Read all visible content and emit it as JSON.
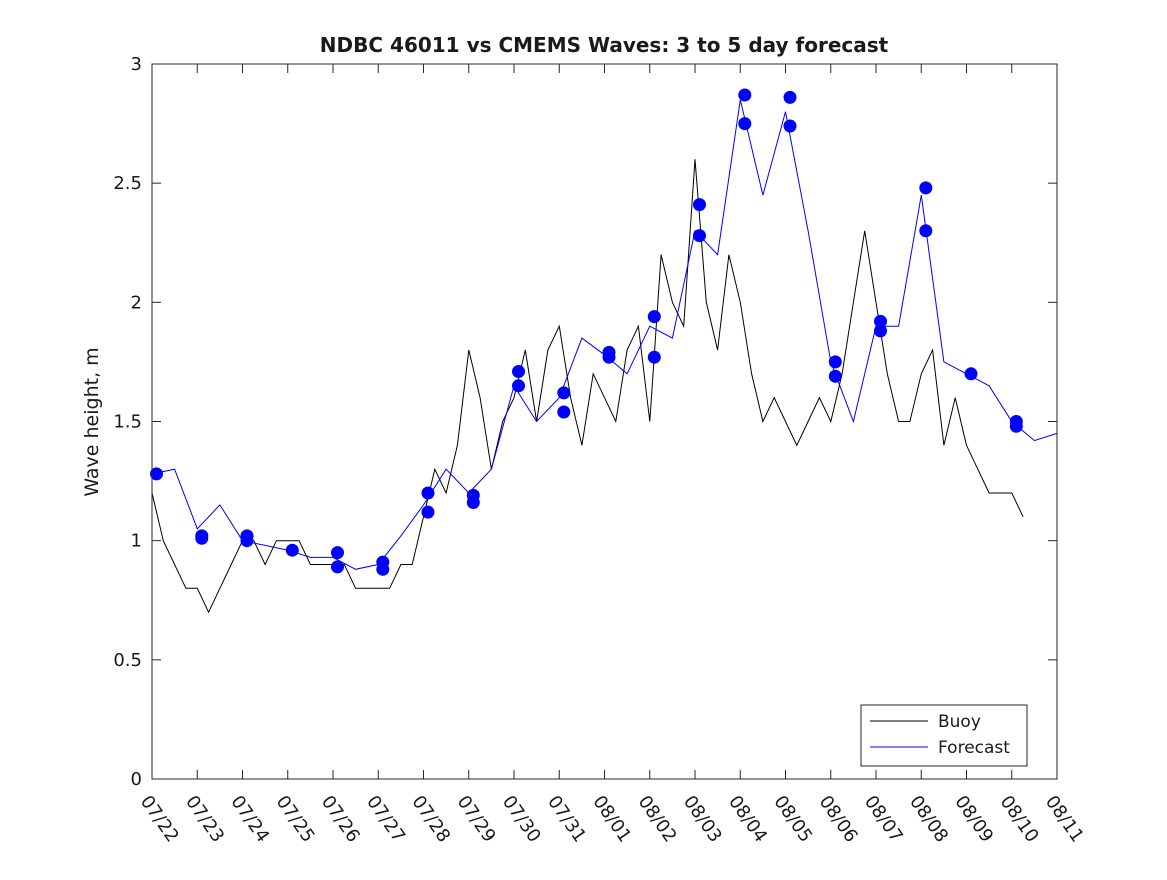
{
  "chart_data": {
    "type": "line",
    "title": "NDBC 46011 vs CMEMS Waves: 3 to 5 day forecast",
    "xlabel": "",
    "ylabel": "Wave height, m",
    "ylim": [
      0,
      3
    ],
    "yticks": [
      "0",
      "0.5",
      "1",
      "1.5",
      "2",
      "2.5",
      "3"
    ],
    "xlim": [
      0,
      20
    ],
    "xticks": [
      "07/22",
      "07/23",
      "07/24",
      "07/25",
      "07/26",
      "07/27",
      "07/28",
      "07/29",
      "07/30",
      "07/31",
      "08/01",
      "08/02",
      "08/03",
      "08/04",
      "08/05",
      "08/06",
      "08/07",
      "08/08",
      "08/09",
      "08/10",
      "08/11"
    ],
    "legend": {
      "placement": "bottom-right",
      "entries": [
        "Buoy",
        "Forecast"
      ]
    },
    "colors": {
      "buoy": "#000000",
      "forecast": "#0000ff",
      "markers": "#0000ff"
    },
    "series": [
      {
        "name": "Buoy",
        "x": [
          0,
          0.25,
          0.5,
          0.75,
          1,
          1.25,
          1.5,
          1.75,
          2,
          2.25,
          2.5,
          2.75,
          3,
          3.25,
          3.5,
          3.75,
          4,
          4.25,
          4.5,
          4.75,
          5,
          5.25,
          5.5,
          5.75,
          6,
          6.25,
          6.5,
          6.75,
          7,
          7.25,
          7.5,
          7.75,
          8,
          8.25,
          8.5,
          8.75,
          9,
          9.25,
          9.5,
          9.75,
          10,
          10.25,
          10.5,
          10.75,
          11,
          11.25,
          11.5,
          11.75,
          12,
          12.25,
          12.5,
          12.75,
          13,
          13.25,
          13.5,
          13.75,
          14,
          14.25,
          14.5,
          14.75,
          15,
          15.25,
          15.5,
          15.75,
          16,
          16.25,
          16.5,
          16.75,
          17,
          17.25,
          17.5,
          17.75,
          18,
          18.25,
          18.5,
          18.75,
          19,
          19.25
        ],
        "values": [
          1.2,
          1.0,
          0.9,
          0.8,
          0.8,
          0.7,
          0.8,
          0.9,
          1.0,
          1.0,
          0.9,
          1.0,
          1.0,
          1.0,
          0.9,
          0.9,
          0.9,
          0.9,
          0.8,
          0.8,
          0.8,
          0.8,
          0.9,
          0.9,
          1.1,
          1.3,
          1.2,
          1.4,
          1.8,
          1.6,
          1.3,
          1.5,
          1.6,
          1.8,
          1.5,
          1.8,
          1.9,
          1.6,
          1.4,
          1.7,
          1.6,
          1.5,
          1.8,
          1.9,
          1.5,
          2.2,
          2.0,
          1.9,
          2.6,
          2.0,
          1.8,
          2.2,
          2.0,
          1.7,
          1.5,
          1.6,
          1.5,
          1.4,
          1.5,
          1.6,
          1.5,
          1.7,
          2.0,
          2.3,
          2.0,
          1.7,
          1.5,
          1.5,
          1.7,
          1.8,
          1.4,
          1.6,
          1.4,
          1.3,
          1.2,
          1.2,
          1.2,
          1.1
        ]
      },
      {
        "name": "Forecast",
        "x": [
          0,
          0.5,
          1,
          1.5,
          2,
          2.5,
          3,
          3.5,
          4,
          4.5,
          5,
          5.5,
          6,
          6.5,
          7,
          7.5,
          8,
          8.5,
          9,
          9.5,
          10,
          10.5,
          11,
          11.5,
          12,
          12.5,
          13,
          13.5,
          14,
          14.5,
          15,
          15.5,
          16,
          16.5,
          17,
          17.5,
          18,
          18.5,
          19,
          19.5,
          20
        ],
        "values": [
          1.28,
          1.3,
          1.05,
          1.15,
          1.0,
          0.98,
          0.96,
          0.93,
          0.93,
          0.88,
          0.9,
          1.02,
          1.15,
          1.3,
          1.2,
          1.3,
          1.65,
          1.5,
          1.6,
          1.85,
          1.78,
          1.7,
          1.9,
          1.85,
          2.3,
          2.2,
          2.85,
          2.45,
          2.8,
          2.3,
          1.75,
          1.5,
          1.9,
          1.9,
          2.45,
          1.75,
          1.7,
          1.65,
          1.5,
          1.42,
          1.45
        ]
      }
    ],
    "markers": {
      "x": [
        0.1,
        1.1,
        1.1,
        2.1,
        2.1,
        3.1,
        4.1,
        4.1,
        5.1,
        5.1,
        6.1,
        6.1,
        7.1,
        7.1,
        8.1,
        8.1,
        9.1,
        9.1,
        10.1,
        10.1,
        11.1,
        11.1,
        12.1,
        12.1,
        13.1,
        13.1,
        14.1,
        14.1,
        15.1,
        15.1,
        16.1,
        16.1,
        17.1,
        17.1,
        18.1,
        19.1,
        19.1
      ],
      "values": [
        1.28,
        1.02,
        1.01,
        1.02,
        1.0,
        0.96,
        0.95,
        0.89,
        0.91,
        0.88,
        1.2,
        1.12,
        1.19,
        1.16,
        1.71,
        1.65,
        1.62,
        1.54,
        1.79,
        1.77,
        1.94,
        1.77,
        2.41,
        2.28,
        2.87,
        2.75,
        2.86,
        2.74,
        1.75,
        1.69,
        1.92,
        1.88,
        2.48,
        2.3,
        1.7,
        1.5,
        1.48
      ]
    }
  }
}
